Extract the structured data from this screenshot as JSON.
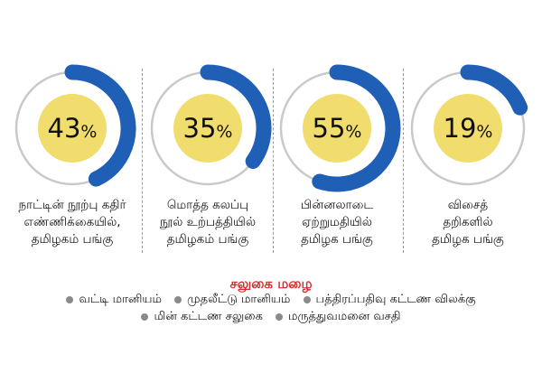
{
  "colors": {
    "arc": "#1f5fb5",
    "ring": "#c9c9c9",
    "center": "#f1dc6e",
    "heading": "#d32f2f"
  },
  "chart_data": [
    {
      "type": "pie",
      "value": 43,
      "unit": "%",
      "label_lines": [
        "நாட்டின் நூற்பு கதிர்",
        "எண்ணிக்கையில்,",
        "தமிழகம் பங்கு"
      ]
    },
    {
      "type": "pie",
      "value": 35,
      "unit": "%",
      "label_lines": [
        "மொத்த கலப்பு",
        "நூல் உற்பத்தியில்",
        "தமிழகம் பங்கு"
      ]
    },
    {
      "type": "pie",
      "value": 55,
      "unit": "%",
      "label_lines": [
        "பின்னலாடை",
        "ஏற்றுமதியில்",
        "தமிழக பங்கு"
      ]
    },
    {
      "type": "pie",
      "value": 19,
      "unit": "%",
      "label_lines": [
        "விசைத்",
        "தறிகளில்",
        "தமிழக பங்கு"
      ]
    }
  ],
  "concessions": {
    "heading": "சலுகை மழை",
    "row1": [
      "வட்டி மானியம்",
      "முதலீட்டு மானியம்",
      "பத்திரப்பதிவு கட்டண விலக்கு"
    ],
    "row2": [
      "மின் கட்டண சலுகை",
      "மருத்துவமனை வசதி"
    ]
  }
}
